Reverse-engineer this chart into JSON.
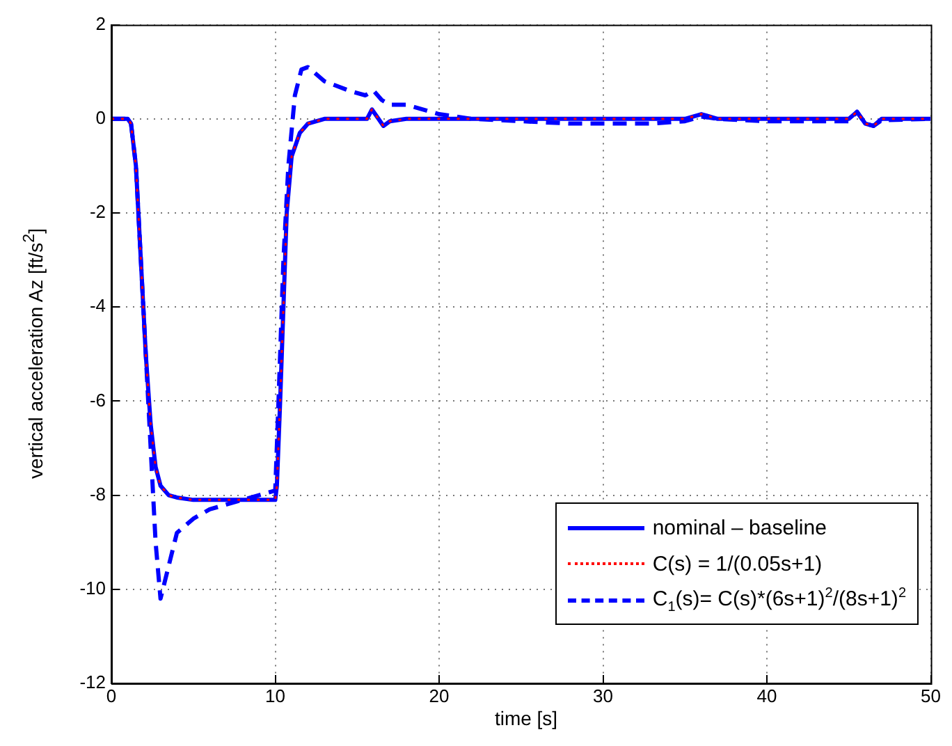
{
  "chart_data": {
    "type": "line",
    "xlabel": "time [s]",
    "ylabel": "vertical acceleration Az [ft/s$^{2}$]",
    "xlim": [
      0,
      50
    ],
    "ylim": [
      -12,
      2
    ],
    "xticks": [
      0,
      10,
      20,
      30,
      40,
      50
    ],
    "yticks": [
      -12,
      -10,
      -8,
      -6,
      -4,
      -2,
      0,
      2
    ],
    "grid": true,
    "legend": "bottom right",
    "marker": "none",
    "series": [
      {
        "name": "nominal – baseline",
        "color": "#0000ff",
        "line_style": "solid",
        "x": [
          0,
          1,
          1.2,
          1.5,
          1.8,
          2.1,
          2.4,
          2.7,
          3,
          3.5,
          4,
          5,
          8,
          10,
          10.1,
          10.3,
          10.5,
          10.7,
          11,
          11.5,
          12,
          13,
          15,
          15.6,
          15.9,
          16.3,
          16.6,
          17,
          18,
          35,
          36,
          37,
          45,
          45.5,
          46,
          46.5,
          47,
          50
        ],
        "values": [
          0,
          0,
          -0.1,
          -1,
          -3,
          -5,
          -6.5,
          -7.4,
          -7.8,
          -8,
          -8.05,
          -8.1,
          -8.1,
          -8.1,
          -7.8,
          -6,
          -4,
          -2,
          -0.8,
          -0.3,
          -0.1,
          0,
          0,
          0,
          0.2,
          0,
          -0.15,
          -0.05,
          0,
          0,
          0.1,
          0,
          0,
          0.15,
          -0.1,
          -0.15,
          0,
          0
        ]
      },
      {
        "name": "C(s) = 1/(0.05s+1)",
        "color": "#ff0000",
        "line_style": "dotted",
        "x": [
          0,
          1,
          1.2,
          1.5,
          1.8,
          2.1,
          2.4,
          2.7,
          3,
          3.5,
          4,
          5,
          8,
          10,
          10.1,
          10.3,
          10.5,
          10.7,
          11,
          11.5,
          12,
          13,
          15,
          15.6,
          15.9,
          16.3,
          16.6,
          17,
          18,
          35,
          36,
          37,
          45,
          45.5,
          46,
          46.5,
          47,
          50
        ],
        "values": [
          0,
          0,
          -0.1,
          -1,
          -3,
          -5,
          -6.5,
          -7.4,
          -7.8,
          -8,
          -8.05,
          -8.1,
          -8.1,
          -8.1,
          -7.8,
          -6,
          -4,
          -2,
          -0.8,
          -0.3,
          -0.1,
          0,
          0,
          0,
          0.2,
          0,
          -0.15,
          -0.05,
          0,
          0,
          0.1,
          0,
          0,
          0.15,
          -0.1,
          -0.15,
          0,
          0
        ]
      },
      {
        "name": "C$_{1}$(s)= C(s)*(6s+1)$^{2}$/(8s+1)$^{2}$",
        "color": "#0000ff",
        "line_style": "dashed",
        "x": [
          0,
          1,
          1.2,
          1.5,
          1.8,
          2.1,
          2.4,
          2.7,
          3,
          3.5,
          4,
          5,
          6,
          8,
          10,
          10.2,
          10.5,
          10.8,
          11.2,
          11.6,
          12,
          13,
          14.5,
          15.5,
          16,
          16.5,
          17,
          18,
          20,
          22,
          25,
          28,
          30,
          33,
          35,
          36,
          37,
          40,
          45,
          45.5,
          46,
          46.5,
          47,
          50
        ],
        "values": [
          0,
          0,
          -0.1,
          -1,
          -3,
          -5,
          -7,
          -9,
          -10.2,
          -9.5,
          -8.8,
          -8.5,
          -8.3,
          -8.1,
          -7.9,
          -6,
          -3,
          -1,
          0.5,
          1.05,
          1.1,
          0.8,
          0.6,
          0.5,
          0.6,
          0.4,
          0.3,
          0.3,
          0.1,
          0,
          -0.05,
          -0.1,
          -0.1,
          -0.1,
          -0.05,
          0.05,
          0,
          -0.05,
          -0.05,
          0.15,
          -0.1,
          -0.15,
          -0.03,
          0
        ]
      }
    ]
  }
}
